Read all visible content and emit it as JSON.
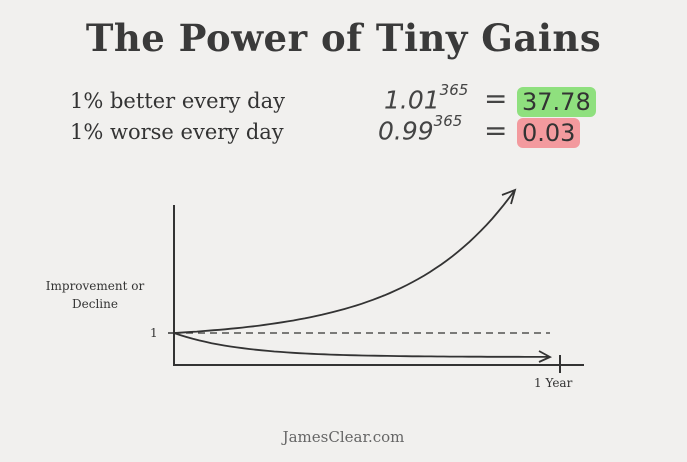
{
  "title": "The Power of Tiny Gains",
  "rows": [
    {
      "label": "1% better every day",
      "base": "1.01",
      "exponent": "365",
      "equals": "=",
      "result": "37.78",
      "highlight": "#8fe07e"
    },
    {
      "label": "1% worse every day",
      "base": "0.99",
      "exponent": "365",
      "equals": "=",
      "result": "0.03",
      "highlight": "#f39a9e"
    }
  ],
  "chart_data": {
    "type": "line",
    "ylabel": "Improvement or Decline",
    "xlabel": "",
    "x_tick_label": "1 Year",
    "y_tick_label": "1",
    "x": [
      0,
      365
    ],
    "series": [
      {
        "formula": "1.01^x",
        "values": [
          1,
          37.78
        ]
      },
      {
        "formula": "0.99^x",
        "values": [
          1,
          0.03
        ]
      },
      {
        "formula": "baseline",
        "values": [
          1,
          1
        ]
      }
    ]
  },
  "footer": "JamesClear.com"
}
